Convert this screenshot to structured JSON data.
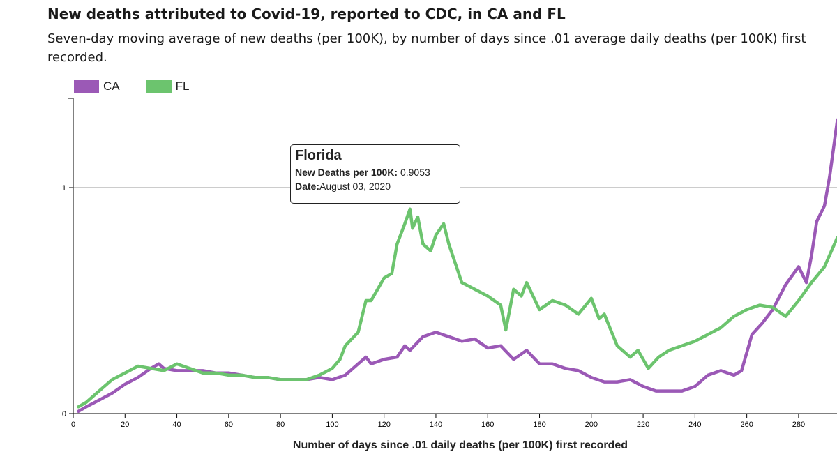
{
  "header": {
    "title": "New deaths attributed to Covid-19, reported to CDC, in CA and FL",
    "subtitle": "Seven-day moving average of new deaths (per 100K), by number of days since .01 average daily deaths (per 100K) first recorded."
  },
  "legend": [
    {
      "label": "CA",
      "color": "#9b59b6"
    },
    {
      "label": "FL",
      "color": "#6cc46e"
    }
  ],
  "tooltip": {
    "title": "Florida",
    "deaths_label": "New Deaths per 100K:",
    "deaths_value": "0.9053",
    "date_label": "Date:",
    "date_value": "August 03, 2020"
  },
  "chart_data": {
    "type": "line",
    "title": "New deaths attributed to Covid-19, reported to CDC, in CA and FL",
    "xlabel": "Number of days since .01 daily deaths (per 100K) first recorded",
    "ylabel": "",
    "xlim": [
      0,
      295
    ],
    "ylim": [
      0,
      1.4
    ],
    "x_ticks": [
      0,
      20,
      40,
      60,
      80,
      100,
      120,
      140,
      160,
      180,
      200,
      220,
      240,
      260,
      280
    ],
    "y_ticks": [
      0,
      1
    ],
    "grid": "horizontal at 1",
    "series": [
      {
        "name": "CA",
        "color": "#9b59b6",
        "x": [
          2,
          5,
          10,
          15,
          20,
          25,
          30,
          33,
          35,
          40,
          45,
          50,
          55,
          60,
          65,
          70,
          75,
          80,
          85,
          90,
          95,
          100,
          105,
          110,
          113,
          115,
          120,
          125,
          128,
          130,
          135,
          140,
          145,
          150,
          155,
          160,
          165,
          170,
          175,
          180,
          185,
          190,
          195,
          200,
          205,
          210,
          215,
          220,
          225,
          230,
          235,
          240,
          245,
          250,
          255,
          258,
          262,
          266,
          270,
          275,
          280,
          283,
          285,
          287,
          290,
          292,
          295
        ],
        "y": [
          0.01,
          0.03,
          0.06,
          0.09,
          0.13,
          0.16,
          0.2,
          0.22,
          0.2,
          0.19,
          0.19,
          0.19,
          0.18,
          0.18,
          0.17,
          0.16,
          0.16,
          0.15,
          0.15,
          0.15,
          0.16,
          0.15,
          0.17,
          0.22,
          0.25,
          0.22,
          0.24,
          0.25,
          0.3,
          0.28,
          0.34,
          0.36,
          0.34,
          0.32,
          0.33,
          0.29,
          0.3,
          0.24,
          0.28,
          0.22,
          0.22,
          0.2,
          0.19,
          0.16,
          0.14,
          0.14,
          0.15,
          0.12,
          0.1,
          0.1,
          0.1,
          0.12,
          0.17,
          0.19,
          0.17,
          0.19,
          0.35,
          0.4,
          0.46,
          0.57,
          0.65,
          0.58,
          0.7,
          0.85,
          0.92,
          1.05,
          1.3
        ]
      },
      {
        "name": "FL",
        "color": "#6cc46e",
        "x": [
          2,
          5,
          10,
          15,
          20,
          25,
          30,
          35,
          40,
          45,
          50,
          55,
          60,
          65,
          70,
          75,
          80,
          85,
          90,
          95,
          100,
          103,
          105,
          110,
          113,
          115,
          120,
          123,
          125,
          128,
          130,
          131,
          133,
          135,
          138,
          140,
          143,
          145,
          150,
          155,
          160,
          165,
          167,
          170,
          173,
          175,
          180,
          185,
          190,
          195,
          200,
          203,
          205,
          210,
          215,
          218,
          222,
          226,
          230,
          235,
          240,
          245,
          250,
          255,
          260,
          265,
          270,
          275,
          280,
          285,
          290,
          295
        ],
        "y": [
          0.03,
          0.05,
          0.1,
          0.15,
          0.18,
          0.21,
          0.2,
          0.19,
          0.22,
          0.2,
          0.18,
          0.18,
          0.17,
          0.17,
          0.16,
          0.16,
          0.15,
          0.15,
          0.15,
          0.17,
          0.2,
          0.24,
          0.3,
          0.36,
          0.5,
          0.5,
          0.6,
          0.62,
          0.75,
          0.84,
          0.9053,
          0.82,
          0.87,
          0.75,
          0.72,
          0.79,
          0.84,
          0.75,
          0.58,
          0.55,
          0.52,
          0.48,
          0.37,
          0.55,
          0.52,
          0.58,
          0.46,
          0.5,
          0.48,
          0.44,
          0.51,
          0.42,
          0.44,
          0.3,
          0.25,
          0.28,
          0.2,
          0.25,
          0.28,
          0.3,
          0.32,
          0.35,
          0.38,
          0.43,
          0.46,
          0.48,
          0.47,
          0.43,
          0.5,
          0.58,
          0.65,
          0.78
        ]
      }
    ]
  }
}
